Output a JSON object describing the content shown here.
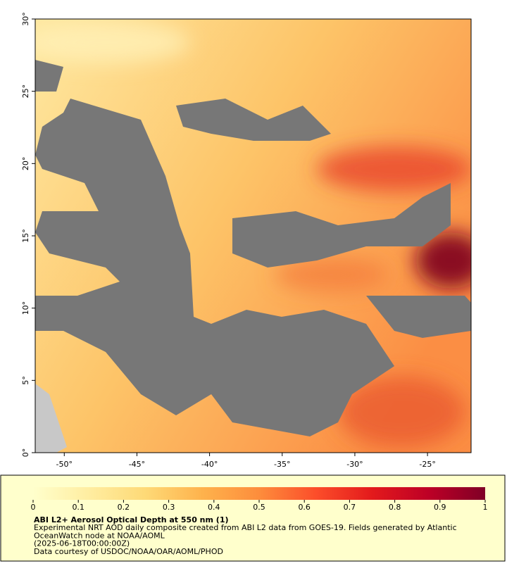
{
  "map": {
    "xlim": [
      -52,
      -22
    ],
    "ylim": [
      0,
      30
    ],
    "xticks": [
      {
        "value": -50,
        "label": "-50°"
      },
      {
        "value": -45,
        "label": "-45°"
      },
      {
        "value": -40,
        "label": "-40°"
      },
      {
        "value": -35,
        "label": "-35°"
      },
      {
        "value": -30,
        "label": "-30°"
      },
      {
        "value": -25,
        "label": "-25°"
      }
    ],
    "yticks": [
      {
        "value": 0,
        "label": "0°"
      },
      {
        "value": 5,
        "label": "5°"
      },
      {
        "value": 10,
        "label": "10°"
      },
      {
        "value": 15,
        "label": "15°"
      },
      {
        "value": 20,
        "label": "20°"
      },
      {
        "value": 25,
        "label": "25°"
      },
      {
        "value": 30,
        "label": "30°"
      }
    ]
  },
  "colorbar": {
    "lim": [
      0,
      1
    ],
    "ticks": [
      0,
      0.1,
      0.2,
      0.3,
      0.4,
      0.5,
      0.6,
      0.7,
      0.8,
      0.9,
      1
    ],
    "colors": [
      "#ffffcc",
      "#ffeda0",
      "#fed976",
      "#feb24c",
      "#fd8d3c",
      "#fc4e2a",
      "#e31a1c",
      "#bd0026",
      "#800026"
    ]
  },
  "legend": {
    "title": "ABI L2+ Aerosol Optical Depth at 550 nm (1)",
    "lines": [
      "Experimental NRT AOD daily composite created from ABI L2 data from GOES-19. Fields generated by Atlantic",
      "OceanWatch node at NOAA/AOML",
      "(2025-06-18T00:00:00Z)",
      "Data courtesy of USDOC/NOAA/OAR/AOML/PHOD"
    ]
  }
}
